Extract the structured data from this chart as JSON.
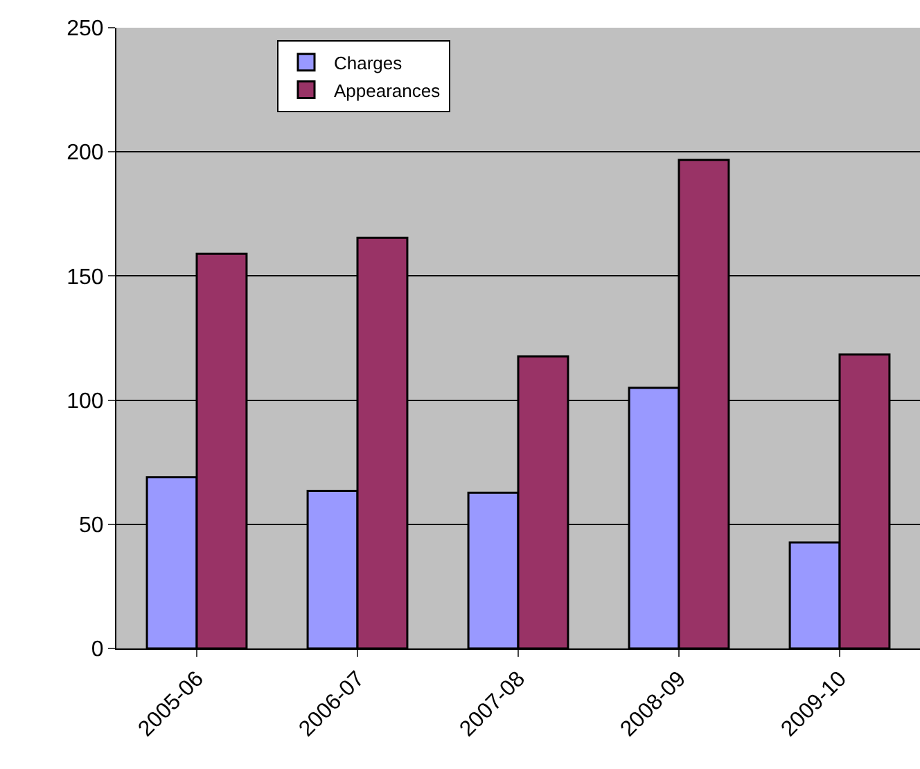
{
  "chart_data": {
    "type": "bar",
    "categories": [
      "2005-06",
      "2006-07",
      "2007-08",
      "2008-09",
      "2009-10"
    ],
    "series": [
      {
        "name": "Charges",
        "color": "#9999ff",
        "values": [
          69,
          63.5,
          62.7,
          105,
          42.7
        ]
      },
      {
        "name": "Appearances",
        "color": "#993366",
        "values": [
          159,
          165.4,
          117.6,
          196.8,
          118.4
        ]
      }
    ],
    "ylim": [
      0,
      250
    ],
    "yticks": [
      0,
      50,
      100,
      150,
      200,
      250
    ],
    "grid": "y",
    "legend": "top left"
  }
}
